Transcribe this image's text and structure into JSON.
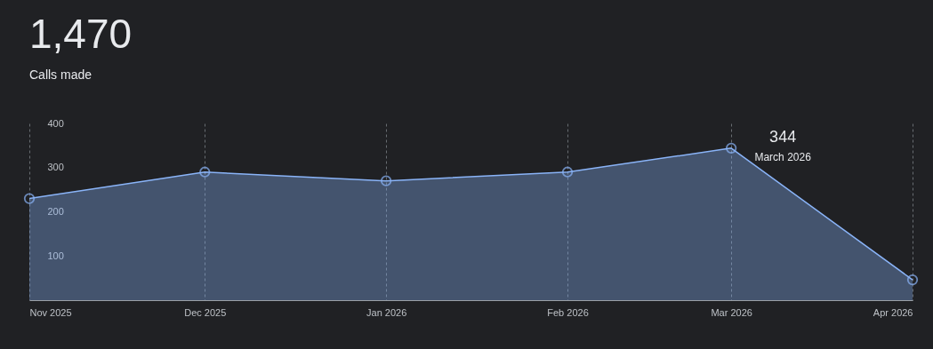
{
  "chart_data": {
    "type": "area",
    "title": "1,470",
    "subtitle": "Calls made",
    "x": [
      "2025-11",
      "2025-12",
      "2026-01",
      "2026-02",
      "2026-03",
      "2026-04"
    ],
    "series": [
      {
        "color": "#8ab4f8",
        "values": [
          230,
          290,
          270,
          290,
          344,
          46
        ]
      }
    ],
    "xlim": [
      "2025-11",
      "2026-04"
    ],
    "xticks": [
      {
        "value": "2025-11",
        "label": "Nov 2025"
      },
      {
        "value": "2025-12",
        "label": "Dec 2025"
      },
      {
        "value": "2026-01",
        "label": "Jan 2026"
      },
      {
        "value": "2026-02",
        "label": "Feb 2026"
      },
      {
        "value": "2026-03",
        "label": "Mar 2026"
      },
      {
        "value": "2026-04",
        "label": "Apr 2026"
      }
    ],
    "ylim": [
      0,
      400
    ],
    "yticks": [
      100,
      200,
      300,
      400
    ],
    "grid": "x",
    "marker": "circle",
    "annotations": [
      {
        "text": "344",
        "x": "2026-03",
        "y": 344
      },
      {
        "text": "March 2026",
        "x": "2026-03",
        "y": 344
      }
    ]
  }
}
